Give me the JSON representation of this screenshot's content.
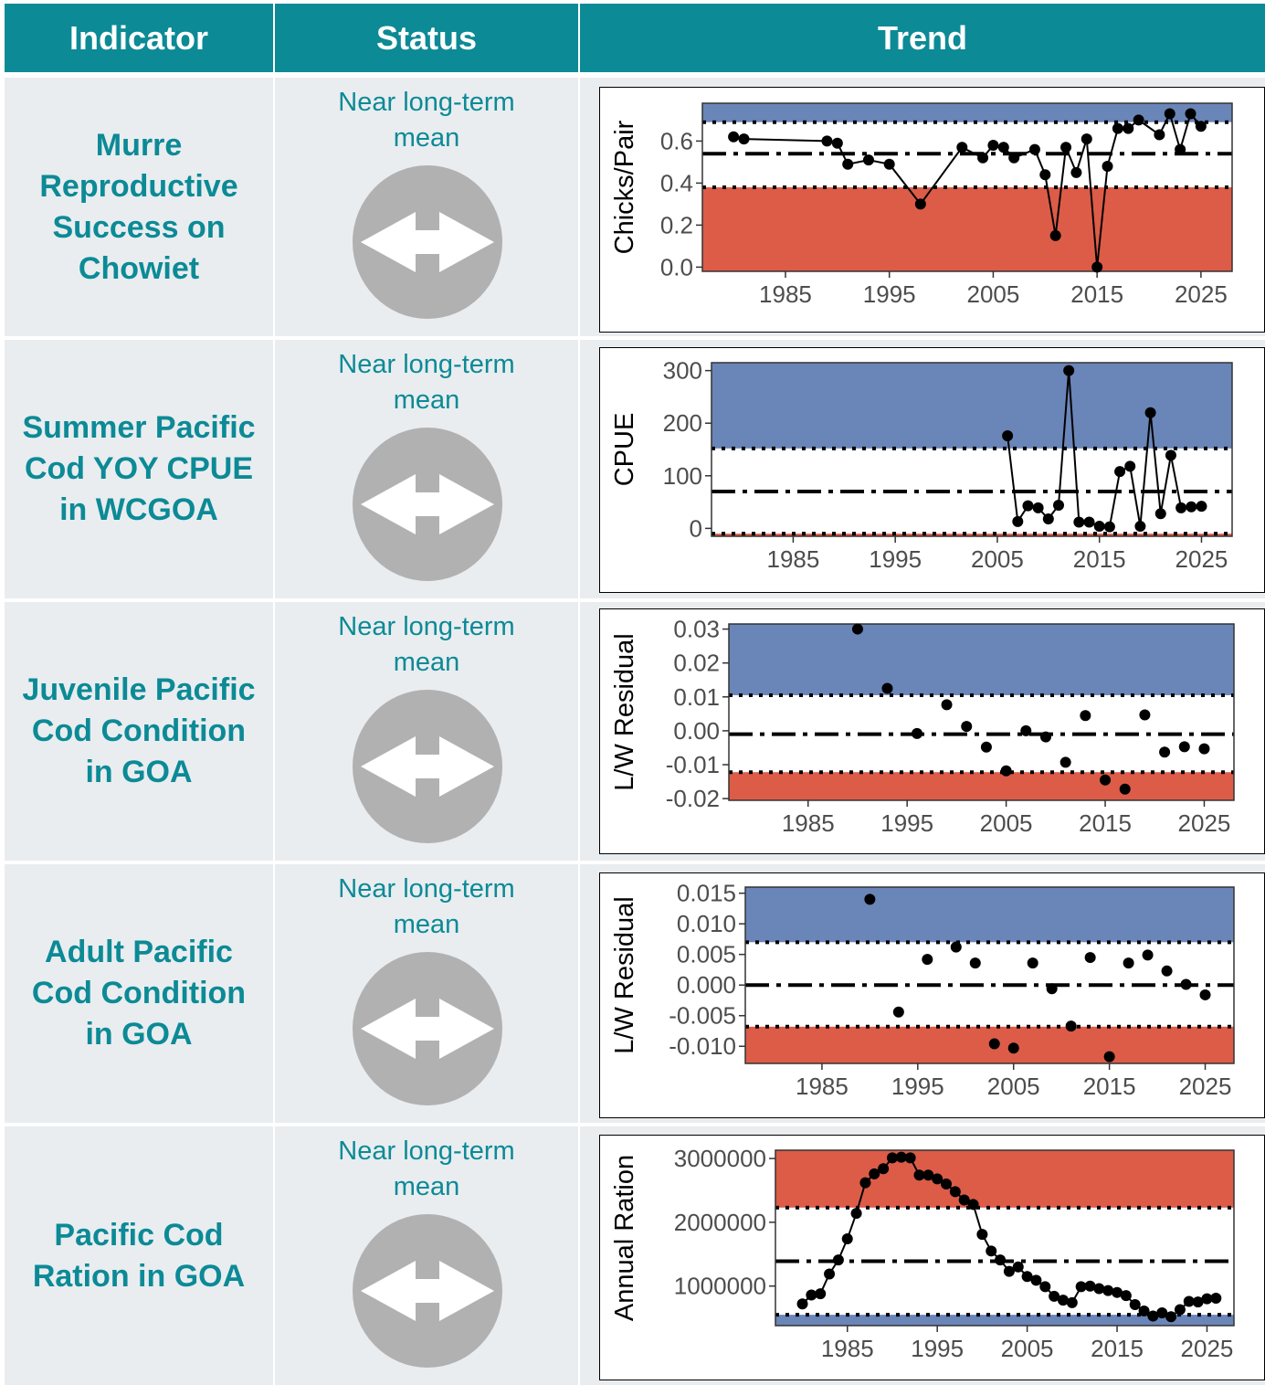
{
  "header": {
    "indicator": "Indicator",
    "status": "Status",
    "trend": "Trend"
  },
  "colors": {
    "header_bg": "#0c8a96",
    "teal_text": "#0c8a96",
    "row_bg": "#e9edf0",
    "above_band": "#6a85b8",
    "below_band": "#dc5c48",
    "icon_gray": "#b1b1b1"
  },
  "rows": [
    {
      "indicator": "Murre Reproductive Success on Chowiet",
      "status": "Near long-term mean",
      "icon": "horizontal-double-arrow-icon"
    },
    {
      "indicator": "Summer Pacific Cod YOY CPUE in WCGOA",
      "status": "Near long-term mean",
      "icon": "horizontal-double-arrow-icon"
    },
    {
      "indicator": "Juvenile Pacific Cod Condition in GOA",
      "status": "Near long-term mean",
      "icon": "horizontal-double-arrow-icon"
    },
    {
      "indicator": "Adult Pacific Cod Condition in GOA",
      "status": "Near long-term mean",
      "icon": "horizontal-double-arrow-icon"
    },
    {
      "indicator": "Pacific Cod Ration in GOA",
      "status": "Near long-term mean",
      "icon": "horizontal-double-arrow-icon"
    }
  ],
  "chart_data": [
    {
      "type": "line",
      "ylabel": "Chicks/Pair",
      "xlim": [
        1977,
        2028
      ],
      "ylim": [
        -0.02,
        0.78
      ],
      "xticks": [
        1985,
        1995,
        2005,
        2015,
        2025
      ],
      "yticks": [
        {
          "v": 0.0,
          "label": "0.0"
        },
        {
          "v": 0.2,
          "label": "0.2"
        },
        {
          "v": 0.4,
          "label": "0.4"
        },
        {
          "v": 0.6,
          "label": "0.6"
        }
      ],
      "mean": 0.54,
      "upper": 0.69,
      "lower": 0.38,
      "top_band": "above",
      "connected": true,
      "points": [
        [
          1980,
          0.62
        ],
        [
          1981,
          0.61
        ],
        [
          1989,
          0.6
        ],
        [
          1990,
          0.59
        ],
        [
          1991,
          0.49
        ],
        [
          1993,
          0.51
        ],
        [
          1995,
          0.49
        ],
        [
          1998,
          0.3
        ],
        [
          2002,
          0.57
        ],
        [
          2004,
          0.52
        ],
        [
          2005,
          0.58
        ],
        [
          2006,
          0.57
        ],
        [
          2007,
          0.52
        ],
        [
          2009,
          0.56
        ],
        [
          2010,
          0.44
        ],
        [
          2011,
          0.15
        ],
        [
          2012,
          0.57
        ],
        [
          2013,
          0.45
        ],
        [
          2014,
          0.61
        ],
        [
          2015,
          0.0
        ],
        [
          2016,
          0.48
        ],
        [
          2017,
          0.66
        ],
        [
          2018,
          0.66
        ],
        [
          2019,
          0.7
        ],
        [
          2021,
          0.63
        ],
        [
          2022,
          0.73
        ],
        [
          2023,
          0.56
        ],
        [
          2024,
          0.73
        ],
        [
          2025,
          0.67
        ]
      ]
    },
    {
      "type": "line",
      "ylabel": "CPUE",
      "xlim": [
        1977,
        2028
      ],
      "ylim": [
        -15,
        315
      ],
      "xticks": [
        1985,
        1995,
        2005,
        2015,
        2025
      ],
      "yticks": [
        {
          "v": 0,
          "label": "0"
        },
        {
          "v": 100,
          "label": "100"
        },
        {
          "v": 200,
          "label": "200"
        },
        {
          "v": 300,
          "label": "300"
        }
      ],
      "mean": 70,
      "upper": 152,
      "lower": -10,
      "top_band": "above",
      "connected": true,
      "points": [
        [
          2006,
          176
        ],
        [
          2007,
          13
        ],
        [
          2008,
          43
        ],
        [
          2009,
          39
        ],
        [
          2010,
          18
        ],
        [
          2011,
          44
        ],
        [
          2012,
          300
        ],
        [
          2013,
          12
        ],
        [
          2014,
          12
        ],
        [
          2015,
          4
        ],
        [
          2016,
          3
        ],
        [
          2017,
          108
        ],
        [
          2018,
          118
        ],
        [
          2019,
          4
        ],
        [
          2020,
          220
        ],
        [
          2021,
          28
        ],
        [
          2022,
          139
        ],
        [
          2023,
          39
        ],
        [
          2024,
          41
        ],
        [
          2025,
          42
        ]
      ]
    },
    {
      "type": "scatter",
      "ylabel": "L/W Residual",
      "xlim": [
        1977,
        2028
      ],
      "ylim": [
        -0.0205,
        0.0315
      ],
      "xticks": [
        1985,
        1995,
        2005,
        2015,
        2025
      ],
      "yticks": [
        {
          "v": -0.02,
          "label": "-0.02"
        },
        {
          "v": -0.01,
          "label": "-0.01"
        },
        {
          "v": 0.0,
          "label": "0.00"
        },
        {
          "v": 0.01,
          "label": "0.01"
        },
        {
          "v": 0.02,
          "label": "0.02"
        },
        {
          "v": 0.03,
          "label": "0.03"
        }
      ],
      "mean": -0.001,
      "upper": 0.0105,
      "lower": -0.0122,
      "top_band": "above",
      "connected": false,
      "points": [
        [
          1990,
          0.03
        ],
        [
          1993,
          0.0125
        ],
        [
          1996,
          -0.0008
        ],
        [
          1999,
          0.0077
        ],
        [
          2001,
          0.0013
        ],
        [
          2003,
          -0.0048
        ],
        [
          2005,
          -0.0118
        ],
        [
          2007,
          0.0
        ],
        [
          2009,
          -0.0018
        ],
        [
          2011,
          -0.0093
        ],
        [
          2013,
          0.0045
        ],
        [
          2015,
          -0.0145
        ],
        [
          2017,
          -0.0172
        ],
        [
          2019,
          0.0047
        ],
        [
          2021,
          -0.0063
        ],
        [
          2023,
          -0.0047
        ],
        [
          2025,
          -0.0053
        ]
      ]
    },
    {
      "type": "scatter",
      "ylabel": "L/W Residual",
      "xlim": [
        1977,
        2028
      ],
      "ylim": [
        -0.0128,
        0.016
      ],
      "xticks": [
        1985,
        1995,
        2005,
        2015,
        2025
      ],
      "yticks": [
        {
          "v": -0.01,
          "label": "-0.010"
        },
        {
          "v": -0.005,
          "label": "-0.005"
        },
        {
          "v": 0.0,
          "label": "0.000"
        },
        {
          "v": 0.005,
          "label": "0.005"
        },
        {
          "v": 0.01,
          "label": "0.010"
        },
        {
          "v": 0.015,
          "label": "0.015"
        }
      ],
      "mean": 0.0,
      "upper": 0.007,
      "lower": -0.0068,
      "top_band": "above",
      "connected": false,
      "points": [
        [
          1990,
          0.014
        ],
        [
          1993,
          -0.0044
        ],
        [
          1996,
          0.0042
        ],
        [
          1999,
          0.0062
        ],
        [
          2001,
          0.0036
        ],
        [
          2003,
          -0.0096
        ],
        [
          2005,
          -0.0103
        ],
        [
          2007,
          0.0036
        ],
        [
          2009,
          -0.0006
        ],
        [
          2011,
          -0.0067
        ],
        [
          2013,
          0.0045
        ],
        [
          2015,
          -0.0117
        ],
        [
          2017,
          0.0036
        ],
        [
          2019,
          0.0049
        ],
        [
          2021,
          0.0023
        ],
        [
          2023,
          0.0001
        ],
        [
          2025,
          -0.0016
        ]
      ]
    },
    {
      "type": "line",
      "ylabel": "Annual Ration",
      "xlim": [
        1977,
        2028
      ],
      "ylim": [
        380000,
        3130000
      ],
      "xticks": [
        1985,
        1995,
        2005,
        2015,
        2025
      ],
      "yticks": [
        {
          "v": 1000000,
          "label": "1000000"
        },
        {
          "v": 2000000,
          "label": "2000000"
        },
        {
          "v": 3000000,
          "label": "3000000"
        }
      ],
      "mean": 1390000,
      "upper": 2230000,
      "lower": 550000,
      "top_band": "below",
      "connected": true,
      "points": [
        [
          1980,
          720000
        ],
        [
          1981,
          860000
        ],
        [
          1982,
          880000
        ],
        [
          1983,
          1190000
        ],
        [
          1984,
          1410000
        ],
        [
          1985,
          1740000
        ],
        [
          1986,
          2140000
        ],
        [
          1987,
          2620000
        ],
        [
          1988,
          2760000
        ],
        [
          1989,
          2840000
        ],
        [
          1990,
          3010000
        ],
        [
          1991,
          3020000
        ],
        [
          1992,
          3010000
        ],
        [
          1993,
          2740000
        ],
        [
          1994,
          2740000
        ],
        [
          1995,
          2680000
        ],
        [
          1996,
          2600000
        ],
        [
          1997,
          2480000
        ],
        [
          1998,
          2350000
        ],
        [
          1999,
          2280000
        ],
        [
          2000,
          1810000
        ],
        [
          2001,
          1550000
        ],
        [
          2002,
          1410000
        ],
        [
          2003,
          1230000
        ],
        [
          2004,
          1300000
        ],
        [
          2005,
          1150000
        ],
        [
          2006,
          1090000
        ],
        [
          2007,
          990000
        ],
        [
          2008,
          840000
        ],
        [
          2009,
          780000
        ],
        [
          2010,
          740000
        ],
        [
          2011,
          990000
        ],
        [
          2012,
          1000000
        ],
        [
          2013,
          960000
        ],
        [
          2014,
          930000
        ],
        [
          2015,
          900000
        ],
        [
          2016,
          850000
        ],
        [
          2017,
          710000
        ],
        [
          2018,
          610000
        ],
        [
          2019,
          530000
        ],
        [
          2020,
          580000
        ],
        [
          2021,
          520000
        ],
        [
          2022,
          630000
        ],
        [
          2023,
          760000
        ],
        [
          2024,
          750000
        ],
        [
          2025,
          800000
        ],
        [
          2026,
          810000
        ]
      ]
    }
  ]
}
